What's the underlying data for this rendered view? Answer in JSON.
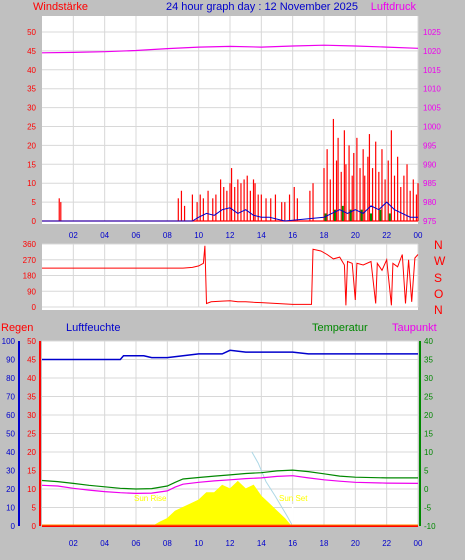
{
  "colors": {
    "background": "#c0c0c0",
    "plot": "#ffffff",
    "grid": "#d8d8d8",
    "wind": "#ff0000",
    "gust": "#0000cc",
    "calm": "#008800",
    "pressure": "#ee00ee",
    "direction": "#ff0000",
    "rain": "#ff0000",
    "humidity": "#0000cc",
    "temperature": "#008800",
    "dewpoint": "#ee00ee",
    "sun": "#ffff00",
    "sun_marker": "#ffffff",
    "time_labels": "#0000cc",
    "solar_ghost": "#add8e6"
  },
  "header": {
    "left_label": "Windstärke",
    "title": "24 hour graph day : 12 November 2025",
    "right_label": "Luftdruck"
  },
  "direction_labels": [
    "N",
    "W",
    "S",
    "O",
    "N"
  ],
  "bottom_header": {
    "rain_label": "Regen",
    "humidity_label": "Luftfeuchte",
    "temperature_label": "Temperatur",
    "dewpoint_label": "Taupunkt"
  },
  "sun_labels": {
    "sunrise": "Sun Rise",
    "sunset": "Sun Set"
  },
  "chart_data": [
    {
      "type": "line",
      "name": "wind-pressure",
      "x_ticks": [
        "02",
        "04",
        "06",
        "08",
        "10",
        "12",
        "14",
        "16",
        "18",
        "20",
        "22",
        "00"
      ],
      "xlim": [
        0,
        24
      ],
      "wind_axis": {
        "ticks": [
          0,
          5,
          10,
          15,
          20,
          25,
          30,
          35,
          40,
          45,
          50
        ],
        "ylim": [
          0,
          50
        ]
      },
      "pressure_axis": {
        "ticks": [
          975,
          980,
          985,
          990,
          995,
          1000,
          1005,
          1010,
          1015,
          1020,
          1025
        ],
        "ylim": [
          975,
          1025
        ]
      },
      "wind_gust_spikes": [
        [
          1.1,
          6
        ],
        [
          1.2,
          5
        ],
        [
          8.7,
          6
        ],
        [
          8.9,
          8
        ],
        [
          9.1,
          4
        ],
        [
          9.6,
          7
        ],
        [
          9.9,
          5
        ],
        [
          10.1,
          7
        ],
        [
          10.3,
          6
        ],
        [
          10.6,
          8
        ],
        [
          10.9,
          6
        ],
        [
          11.1,
          7
        ],
        [
          11.4,
          11
        ],
        [
          11.6,
          9
        ],
        [
          11.8,
          8
        ],
        [
          12.0,
          10
        ],
        [
          12.1,
          14
        ],
        [
          12.3,
          9
        ],
        [
          12.5,
          11
        ],
        [
          12.7,
          10
        ],
        [
          12.9,
          11
        ],
        [
          13.1,
          12
        ],
        [
          13.3,
          8
        ],
        [
          13.5,
          11
        ],
        [
          13.6,
          10
        ],
        [
          13.8,
          7
        ],
        [
          14.0,
          7
        ],
        [
          14.3,
          6
        ],
        [
          14.6,
          6
        ],
        [
          14.9,
          7
        ],
        [
          15.3,
          5
        ],
        [
          15.5,
          5
        ],
        [
          15.8,
          7
        ],
        [
          16.1,
          9
        ],
        [
          16.3,
          6
        ],
        [
          17.1,
          8
        ],
        [
          17.3,
          10
        ],
        [
          18.0,
          14
        ],
        [
          18.2,
          19
        ],
        [
          18.4,
          11
        ],
        [
          18.6,
          27
        ],
        [
          18.8,
          16
        ],
        [
          18.9,
          22
        ],
        [
          19.1,
          13
        ],
        [
          19.3,
          24
        ],
        [
          19.4,
          15
        ],
        [
          19.6,
          20
        ],
        [
          19.8,
          12
        ],
        [
          19.9,
          18
        ],
        [
          20.1,
          22
        ],
        [
          20.3,
          14
        ],
        [
          20.5,
          19
        ],
        [
          20.6,
          12
        ],
        [
          20.8,
          17
        ],
        [
          20.9,
          23
        ],
        [
          21.1,
          14
        ],
        [
          21.3,
          21
        ],
        [
          21.5,
          13
        ],
        [
          21.7,
          19
        ],
        [
          21.9,
          11
        ],
        [
          22.1,
          16
        ],
        [
          22.3,
          24
        ],
        [
          22.5,
          12
        ],
        [
          22.7,
          17
        ],
        [
          22.9,
          9
        ],
        [
          23.1,
          12
        ],
        [
          23.3,
          15
        ],
        [
          23.5,
          8
        ],
        [
          23.7,
          11
        ],
        [
          23.9,
          7
        ],
        [
          24.0,
          10
        ]
      ],
      "wind_average": [
        [
          0,
          0
        ],
        [
          9.6,
          0
        ],
        [
          10.0,
          1
        ],
        [
          10.5,
          2
        ],
        [
          11.0,
          1.5
        ],
        [
          11.5,
          3
        ],
        [
          12.0,
          3.5
        ],
        [
          12.5,
          2
        ],
        [
          13.0,
          3
        ],
        [
          13.5,
          1.5
        ],
        [
          14.0,
          1
        ],
        [
          14.5,
          1
        ],
        [
          15.0,
          0.5
        ],
        [
          15.5,
          0
        ],
        [
          18.0,
          1
        ],
        [
          18.5,
          2
        ],
        [
          19.0,
          3
        ],
        [
          19.5,
          2
        ],
        [
          20.0,
          3
        ],
        [
          20.5,
          2
        ],
        [
          21.0,
          4
        ],
        [
          21.5,
          3
        ],
        [
          22.0,
          5
        ],
        [
          22.5,
          3
        ],
        [
          23.0,
          2
        ],
        [
          23.5,
          1
        ],
        [
          24.0,
          1
        ]
      ],
      "calm_bars": [
        [
          18.1,
          2
        ],
        [
          18.7,
          3
        ],
        [
          19.2,
          4
        ],
        [
          19.7,
          3
        ],
        [
          20.4,
          3
        ],
        [
          21.0,
          2
        ],
        [
          21.6,
          3
        ],
        [
          22.2,
          2
        ]
      ],
      "pressure": [
        [
          0,
          1019.5
        ],
        [
          2,
          1019.6
        ],
        [
          4,
          1019.8
        ],
        [
          6,
          1020.1
        ],
        [
          8,
          1020.6
        ],
        [
          10,
          1021.0
        ],
        [
          12,
          1021.2
        ],
        [
          14,
          1021.0
        ],
        [
          16,
          1021.3
        ],
        [
          18,
          1021.5
        ],
        [
          20,
          1021.3
        ],
        [
          22,
          1021.0
        ],
        [
          24,
          1020.7
        ]
      ]
    },
    {
      "type": "line",
      "name": "wind-direction",
      "x_ticks": [
        "02",
        "04",
        "06",
        "08",
        "10",
        "12",
        "14",
        "16",
        "18",
        "20",
        "22",
        "00"
      ],
      "xlim": [
        0,
        24
      ],
      "y_ticks": [
        0,
        90,
        180,
        270,
        360
      ],
      "ylim": [
        0,
        360
      ],
      "direction": [
        [
          0,
          222
        ],
        [
          9.0,
          222
        ],
        [
          9.6,
          226
        ],
        [
          10.0,
          235
        ],
        [
          10.3,
          250
        ],
        [
          10.4,
          350
        ],
        [
          10.5,
          20
        ],
        [
          10.8,
          30
        ],
        [
          11.5,
          34
        ],
        [
          12.0,
          36
        ],
        [
          12.5,
          30
        ],
        [
          13.0,
          30
        ],
        [
          13.5,
          27
        ],
        [
          14.0,
          25
        ],
        [
          15.0,
          20
        ],
        [
          16.0,
          15
        ],
        [
          17.0,
          15
        ],
        [
          17.2,
          15
        ],
        [
          17.3,
          330
        ],
        [
          17.8,
          320
        ],
        [
          18.2,
          300
        ],
        [
          18.6,
          275
        ],
        [
          19.0,
          285
        ],
        [
          19.3,
          240
        ],
        [
          19.4,
          10
        ],
        [
          19.5,
          260
        ],
        [
          19.8,
          250
        ],
        [
          20.0,
          40
        ],
        [
          20.1,
          250
        ],
        [
          20.5,
          240
        ],
        [
          21.0,
          260
        ],
        [
          21.3,
          20
        ],
        [
          21.4,
          250
        ],
        [
          21.7,
          210
        ],
        [
          22.0,
          270
        ],
        [
          22.3,
          10
        ],
        [
          22.4,
          250
        ],
        [
          22.7,
          230
        ],
        [
          23.0,
          300
        ],
        [
          23.2,
          20
        ],
        [
          23.4,
          270
        ],
        [
          23.6,
          30
        ],
        [
          23.8,
          280
        ],
        [
          24.0,
          300
        ]
      ]
    },
    {
      "type": "line",
      "name": "rain-humidity-temperature",
      "x_ticks": [
        "02",
        "04",
        "06",
        "08",
        "10",
        "12",
        "14",
        "16",
        "18",
        "20",
        "22",
        "00"
      ],
      "xlim": [
        0,
        24
      ],
      "humidity_axis": {
        "ticks": [
          0,
          10,
          20,
          30,
          40,
          50,
          60,
          70,
          80,
          90,
          100
        ],
        "ylim": [
          0,
          100
        ]
      },
      "rain_axis": {
        "ticks": [
          0,
          5,
          10,
          15,
          20,
          25,
          30,
          35,
          40,
          45,
          50
        ],
        "ylim": [
          0,
          50
        ]
      },
      "temperature_axis": {
        "ticks": [
          -10,
          -5,
          0,
          5,
          10,
          15,
          20,
          25,
          30,
          35,
          40
        ],
        "ylim": [
          -10,
          40
        ]
      },
      "sunrise": 7.0,
      "sunset": 16.0,
      "humidity": [
        [
          0,
          90
        ],
        [
          5,
          90
        ],
        [
          5.2,
          92
        ],
        [
          6.5,
          92
        ],
        [
          7,
          91
        ],
        [
          8,
          91
        ],
        [
          9,
          92
        ],
        [
          10,
          93
        ],
        [
          11.5,
          93
        ],
        [
          12,
          95
        ],
        [
          13,
          94
        ],
        [
          15,
          94
        ],
        [
          16,
          94
        ],
        [
          17,
          93
        ],
        [
          24,
          93
        ]
      ],
      "temperature": [
        [
          0,
          2.3
        ],
        [
          1,
          2.0
        ],
        [
          2,
          1.5
        ],
        [
          3,
          1.0
        ],
        [
          4,
          0.6
        ],
        [
          5,
          0.2
        ],
        [
          6,
          0
        ],
        [
          7,
          0.1
        ],
        [
          8,
          0.8
        ],
        [
          8.5,
          1.8
        ],
        [
          9,
          2.7
        ],
        [
          10,
          3.1
        ],
        [
          11,
          3.5
        ],
        [
          12,
          3.8
        ],
        [
          13,
          4.2
        ],
        [
          14,
          4.4
        ],
        [
          15,
          4.9
        ],
        [
          16,
          5.1
        ],
        [
          17,
          4.7
        ],
        [
          18,
          4.1
        ],
        [
          19,
          3.5
        ],
        [
          20,
          3.2
        ],
        [
          22,
          3.0
        ],
        [
          24,
          3.0
        ]
      ],
      "dewpoint": [
        [
          0,
          1.0
        ],
        [
          1,
          0.8
        ],
        [
          2,
          0.2
        ],
        [
          3,
          -0.3
        ],
        [
          4,
          -0.7
        ],
        [
          5,
          -1.0
        ],
        [
          6,
          -1.2
        ],
        [
          7,
          -1.1
        ],
        [
          8,
          -0.5
        ],
        [
          8.5,
          0.5
        ],
        [
          9,
          1.3
        ],
        [
          10,
          1.8
        ],
        [
          11,
          2.2
        ],
        [
          12,
          2.5
        ],
        [
          13,
          2.8
        ],
        [
          14,
          3.0
        ],
        [
          15,
          3.4
        ],
        [
          16,
          3.6
        ],
        [
          17,
          3.0
        ],
        [
          18,
          2.5
        ],
        [
          19,
          2.1
        ],
        [
          20,
          1.8
        ],
        [
          22,
          1.6
        ],
        [
          24,
          1.5
        ]
      ],
      "rain": [
        [
          0,
          0
        ],
        [
          24,
          0
        ]
      ],
      "solar": [
        [
          7.1,
          0
        ],
        [
          7.5,
          1
        ],
        [
          8,
          2
        ],
        [
          8.5,
          4
        ],
        [
          9,
          5
        ],
        [
          9.5,
          6
        ],
        [
          10,
          7
        ],
        [
          10.5,
          9
        ],
        [
          11,
          9
        ],
        [
          11.5,
          11
        ],
        [
          12,
          10
        ],
        [
          12.5,
          12
        ],
        [
          13,
          10
        ],
        [
          13.5,
          11
        ],
        [
          14,
          8
        ],
        [
          14.5,
          6
        ],
        [
          15,
          4
        ],
        [
          15.5,
          2
        ],
        [
          15.9,
          0
        ]
      ],
      "solar_ghost": [
        [
          13.4,
          20
        ],
        [
          13.8,
          17
        ],
        [
          14.3,
          12
        ],
        [
          14.9,
          8
        ],
        [
          15.6,
          3
        ],
        [
          16.0,
          0
        ]
      ]
    }
  ]
}
